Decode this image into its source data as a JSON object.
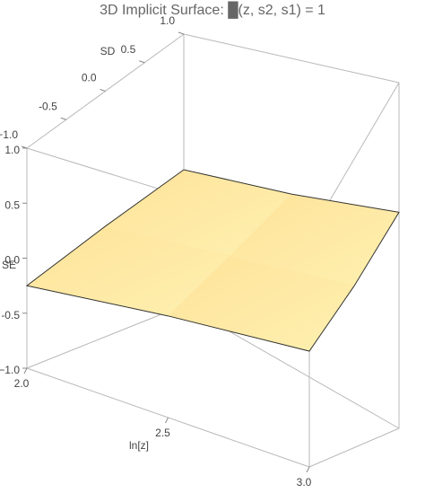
{
  "chart_data": {
    "type": "surface3d",
    "title": "3D Implicit Surface: █(z, s2, s1) = 1",
    "xlabel": "ln[z]",
    "ylabel": "SD",
    "zlabel": "SE",
    "xlim": [
      2,
      3
    ],
    "xticks": [
      {
        "value": 2,
        "label": "2.0"
      },
      2.5,
      {
        "value": 3,
        "label": "3.0"
      }
    ],
    "ylim": [
      -1,
      1
    ],
    "yticks": [
      {
        "value": -1,
        "label": "−1.0"
      },
      -0.5,
      {
        "value": 0,
        "label": "0.0"
      },
      0.5,
      {
        "value": 1,
        "label": "1.0"
      }
    ],
    "zlim": [
      -1,
      1
    ],
    "zticks": [
      {
        "value": -1,
        "label": "−1.0"
      },
      -0.5,
      {
        "value": 0,
        "label": "0.0"
      },
      0.5,
      {
        "value": 1,
        "label": "1.0"
      }
    ],
    "surface": {
      "x": [
        2,
        2.5,
        3
      ],
      "y": [
        -1,
        0,
        1
      ],
      "z": [
        [
          -0.25,
          -0.1,
          0
        ],
        [
          -0.1,
          0.02,
          0.12
        ],
        [
          0,
          0.12,
          0.25
        ]
      ]
    },
    "color": "#fde79a"
  }
}
